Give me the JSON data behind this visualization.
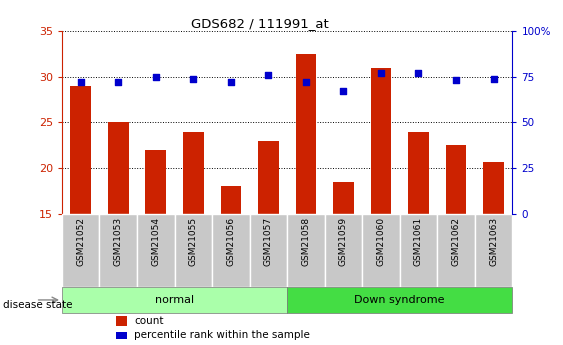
{
  "title": "GDS682 / 111991_at",
  "samples": [
    "GSM21052",
    "GSM21053",
    "GSM21054",
    "GSM21055",
    "GSM21056",
    "GSM21057",
    "GSM21058",
    "GSM21059",
    "GSM21060",
    "GSM21061",
    "GSM21062",
    "GSM21063"
  ],
  "count_values": [
    29,
    25,
    22,
    24,
    18,
    23,
    32.5,
    18.5,
    31,
    24,
    22.5,
    20.7
  ],
  "percentile_values": [
    72,
    72,
    75,
    74,
    72,
    76,
    72,
    67,
    77,
    77,
    73,
    74
  ],
  "count_base": 15,
  "count_ylim": [
    15,
    35
  ],
  "count_yticks": [
    15,
    20,
    25,
    30,
    35
  ],
  "percentile_ylim": [
    0,
    100
  ],
  "percentile_yticks": [
    0,
    25,
    50,
    75,
    100
  ],
  "bar_color": "#cc2200",
  "dot_color": "#0000cc",
  "left_axis_color": "#cc2200",
  "right_axis_color": "#0000cc",
  "grid_color": "#000000",
  "normal_indices": [
    0,
    1,
    2,
    3,
    4,
    5
  ],
  "down_indices": [
    6,
    7,
    8,
    9,
    10,
    11
  ],
  "normal_label": "normal",
  "down_label": "Down syndrome",
  "disease_label": "disease state",
  "legend_count": "count",
  "legend_pct": "percentile rank within the sample",
  "bg_xtick": "#c8c8c8",
  "normal_color": "#aaffaa",
  "down_color": "#44dd44",
  "bar_width": 0.55
}
